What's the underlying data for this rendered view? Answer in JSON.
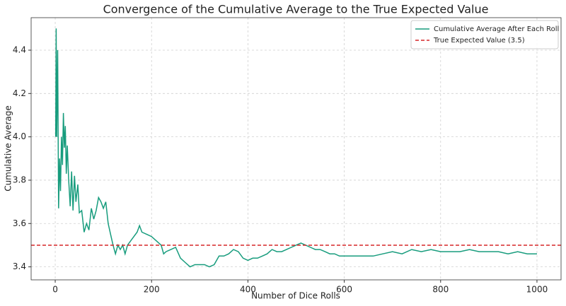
{
  "chart_data": {
    "type": "line",
    "title": "Convergence of the Cumulative Average to the True Expected Value",
    "xlabel": "Number of Dice Rolls",
    "ylabel": "Cumulative Average",
    "xlim": [
      -50,
      1050
    ],
    "ylim": [
      3.34,
      4.55
    ],
    "xticks": [
      0,
      200,
      400,
      600,
      800,
      1000
    ],
    "yticks": [
      3.4,
      3.6,
      3.8,
      {
        "value": 4.0,
        "label": "4.0"
      },
      4.2,
      4.4
    ],
    "grid": true,
    "legend": "upper right",
    "series": [
      {
        "name": "Cumulative Average After Each Roll",
        "color": "#179c7d",
        "x": [
          1,
          2,
          3,
          5,
          7,
          9,
          11,
          13,
          15,
          17,
          19,
          21,
          23,
          25,
          28,
          31,
          34,
          37,
          40,
          43,
          47,
          50,
          55,
          60,
          65,
          70,
          75,
          80,
          85,
          90,
          95,
          100,
          105,
          110,
          115,
          120,
          125,
          130,
          135,
          140,
          145,
          150,
          160,
          170,
          175,
          180,
          190,
          200,
          210,
          220,
          225,
          230,
          240,
          250,
          260,
          270,
          280,
          290,
          300,
          310,
          320,
          330,
          340,
          350,
          360,
          370,
          380,
          390,
          400,
          410,
          420,
          430,
          440,
          450,
          460,
          470,
          480,
          490,
          500,
          510,
          520,
          530,
          540,
          550,
          560,
          570,
          580,
          590,
          600,
          620,
          640,
          660,
          680,
          700,
          720,
          740,
          760,
          780,
          800,
          820,
          840,
          860,
          880,
          900,
          920,
          940,
          960,
          980,
          1000
        ],
        "values": [
          4.0,
          4.5,
          4.0,
          4.4,
          3.67,
          3.9,
          3.75,
          4.0,
          3.87,
          4.11,
          3.95,
          4.05,
          3.83,
          3.96,
          3.8,
          3.68,
          3.84,
          3.66,
          3.82,
          3.7,
          3.78,
          3.65,
          3.66,
          3.56,
          3.6,
          3.57,
          3.67,
          3.62,
          3.66,
          3.72,
          3.7,
          3.67,
          3.7,
          3.6,
          3.55,
          3.5,
          3.46,
          3.5,
          3.48,
          3.5,
          3.46,
          3.5,
          3.53,
          3.56,
          3.59,
          3.56,
          3.55,
          3.54,
          3.52,
          3.5,
          3.46,
          3.47,
          3.48,
          3.49,
          3.44,
          3.42,
          3.4,
          3.41,
          3.41,
          3.41,
          3.4,
          3.41,
          3.45,
          3.45,
          3.46,
          3.48,
          3.47,
          3.44,
          3.43,
          3.44,
          3.44,
          3.45,
          3.46,
          3.48,
          3.47,
          3.47,
          3.48,
          3.49,
          3.5,
          3.51,
          3.5,
          3.49,
          3.48,
          3.48,
          3.47,
          3.46,
          3.46,
          3.45,
          3.45,
          3.45,
          3.45,
          3.45,
          3.46,
          3.47,
          3.46,
          3.48,
          3.47,
          3.48,
          3.47,
          3.47,
          3.47,
          3.48,
          3.47,
          3.47,
          3.47,
          3.46,
          3.47,
          3.46,
          3.46
        ]
      }
    ],
    "reference_lines": [
      {
        "name": "True Expected Value (3.5)",
        "value": 3.5,
        "color": "#d62728",
        "style": "dashed"
      }
    ]
  }
}
